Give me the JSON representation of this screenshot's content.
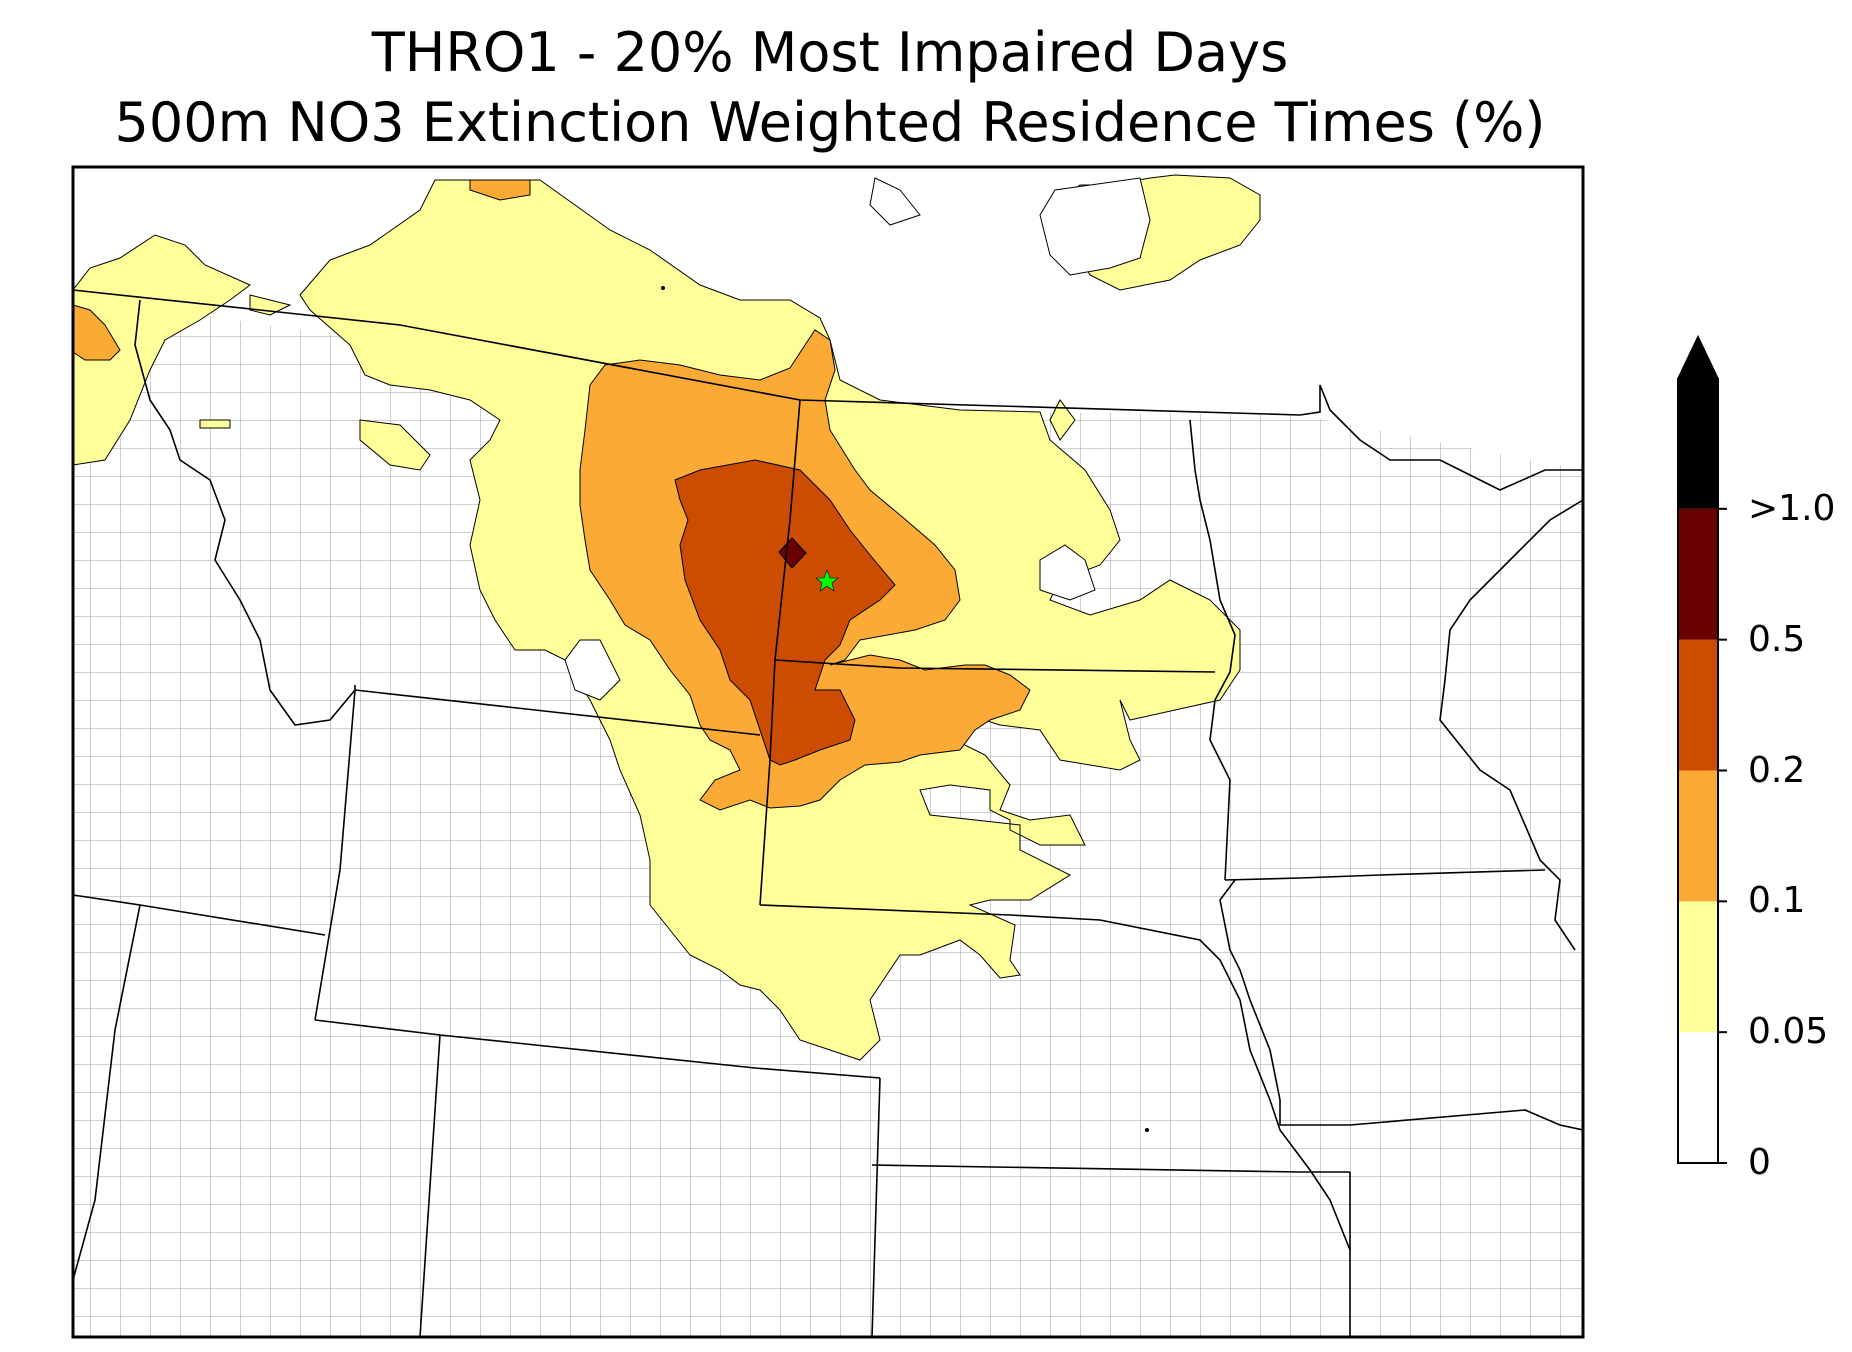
{
  "title_line1": "THRO1 - 20% Most Impaired Days",
  "title_line2": "500m NO3 Extinction Weighted Residence Times (%)",
  "colorbar": {
    "extend": "max",
    "levels": [
      "0",
      "0.05",
      "0.1",
      "0.2",
      "0.5",
      ">1.0"
    ],
    "bands": [
      {
        "from": "0",
        "to": "0.05",
        "color": "#ffffff"
      },
      {
        "from": "0.05",
        "to": "0.1",
        "color": "#ffff99"
      },
      {
        "from": "0.1",
        "to": "0.2",
        "color": "#fbab35"
      },
      {
        "from": "0.2",
        "to": "0.5",
        "color": "#cc4c02"
      },
      {
        "from": "0.5",
        "to": "1.0",
        "color": "#6b0000"
      },
      {
        "from": "1.0",
        "to": "max",
        "color": "#000000"
      }
    ]
  },
  "colors": {
    "state_border": "#000000",
    "county_border": "#aaaaaa",
    "site_marker": "#00ff00"
  },
  "site_marker_icon": "star-icon"
}
